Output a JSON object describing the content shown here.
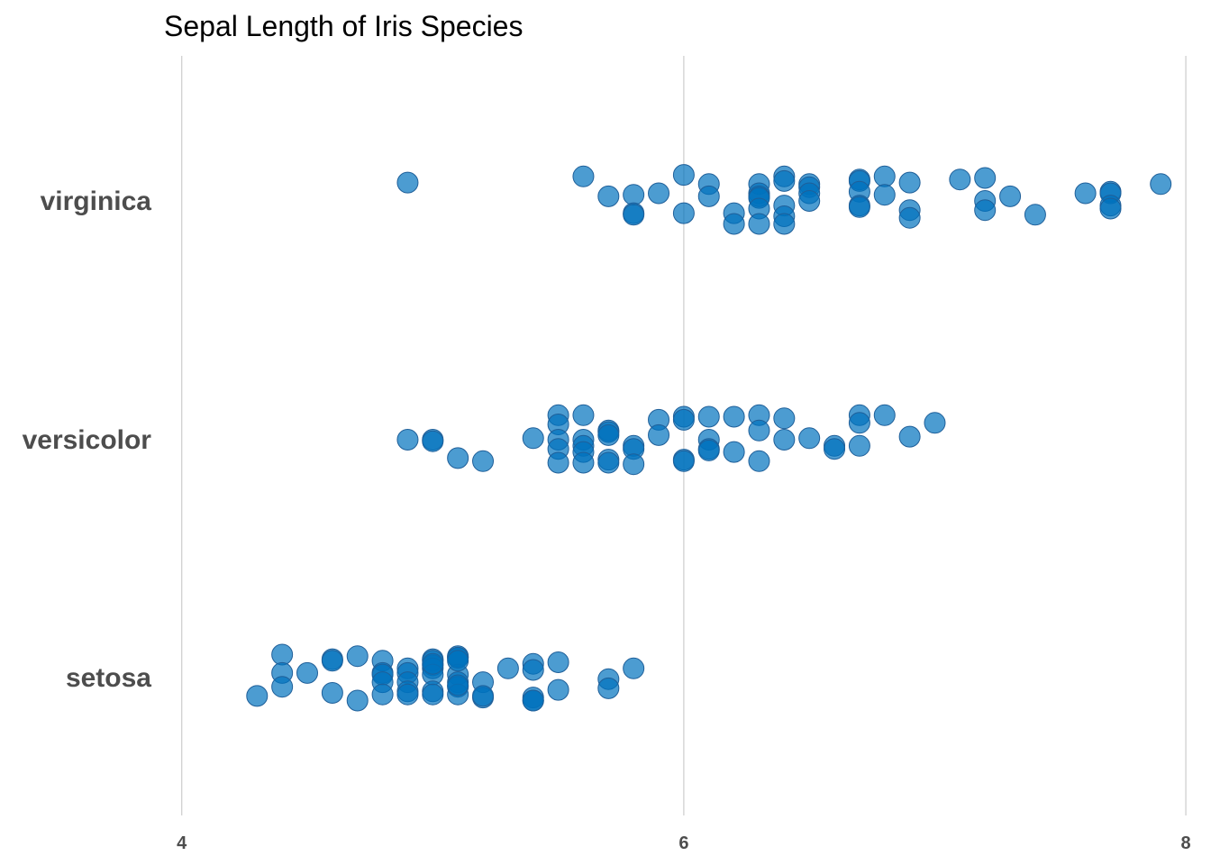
{
  "chart_data": {
    "type": "scatter",
    "title": "Sepal Length of Iris Species",
    "xlabel": "",
    "ylabel": "",
    "xlim": [
      3.94,
      8.05
    ],
    "x_ticks": [
      "4",
      "6",
      "8"
    ],
    "x_tick_values": [
      4,
      6,
      8
    ],
    "grid": "vertical major gridlines",
    "point_color": "#0072BD",
    "point_opacity": 0.7,
    "categories": [
      "setosa",
      "versicolor",
      "virginica"
    ],
    "series": [
      {
        "category": "setosa",
        "points": [
          {
            "x": 4.3,
            "y": -0.12
          },
          {
            "x": 4.4,
            "y": 0.15
          },
          {
            "x": 4.4,
            "y": 0.03
          },
          {
            "x": 4.4,
            "y": -0.06
          },
          {
            "x": 4.5,
            "y": 0.03
          },
          {
            "x": 4.6,
            "y": 0.12
          },
          {
            "x": 4.6,
            "y": 0.11
          },
          {
            "x": 4.6,
            "y": -0.1
          },
          {
            "x": 4.7,
            "y": 0.14
          },
          {
            "x": 4.7,
            "y": -0.15
          },
          {
            "x": 4.8,
            "y": 0.11
          },
          {
            "x": 4.8,
            "y": 0.03
          },
          {
            "x": 4.8,
            "y": 0.02
          },
          {
            "x": 4.8,
            "y": -0.03
          },
          {
            "x": 4.8,
            "y": -0.11
          },
          {
            "x": 4.9,
            "y": 0.06
          },
          {
            "x": 4.9,
            "y": 0.03
          },
          {
            "x": 4.9,
            "y": -0.03
          },
          {
            "x": 4.9,
            "y": -0.09
          },
          {
            "x": 4.9,
            "y": -0.11
          },
          {
            "x": 5.0,
            "y": 0.12
          },
          {
            "x": 5.0,
            "y": 0.11
          },
          {
            "x": 5.0,
            "y": 0.08
          },
          {
            "x": 5.0,
            "y": 0.06
          },
          {
            "x": 5.0,
            "y": 0.02
          },
          {
            "x": 5.0,
            "y": -0.09
          },
          {
            "x": 5.0,
            "y": -0.11
          },
          {
            "x": 5.0,
            "y": 0.09
          },
          {
            "x": 5.1,
            "y": 0.14
          },
          {
            "x": 5.1,
            "y": 0.13
          },
          {
            "x": 5.1,
            "y": 0.02
          },
          {
            "x": 5.1,
            "y": -0.03
          },
          {
            "x": 5.1,
            "y": -0.06
          },
          {
            "x": 5.1,
            "y": -0.11
          },
          {
            "x": 5.1,
            "y": -0.05
          },
          {
            "x": 5.1,
            "y": 0.13
          },
          {
            "x": 5.1,
            "y": 0.11
          },
          {
            "x": 5.2,
            "y": -0.03
          },
          {
            "x": 5.2,
            "y": -0.13
          },
          {
            "x": 5.2,
            "y": -0.12
          },
          {
            "x": 5.3,
            "y": 0.06
          },
          {
            "x": 5.4,
            "y": 0.09
          },
          {
            "x": 5.4,
            "y": 0.05
          },
          {
            "x": 5.4,
            "y": -0.13
          },
          {
            "x": 5.4,
            "y": -0.15
          },
          {
            "x": 5.4,
            "y": -0.15
          },
          {
            "x": 5.5,
            "y": 0.1
          },
          {
            "x": 5.5,
            "y": -0.08
          },
          {
            "x": 5.7,
            "y": -0.01
          },
          {
            "x": 5.7,
            "y": -0.07
          },
          {
            "x": 5.8,
            "y": 0.06
          }
        ]
      },
      {
        "category": "versicolor",
        "points": [
          {
            "x": 4.9,
            "y": 0.0
          },
          {
            "x": 5.0,
            "y": 0.0
          },
          {
            "x": 5.0,
            "y": -0.01
          },
          {
            "x": 5.1,
            "y": -0.12
          },
          {
            "x": 5.2,
            "y": -0.14
          },
          {
            "x": 5.4,
            "y": 0.01
          },
          {
            "x": 5.5,
            "y": 0.16
          },
          {
            "x": 5.5,
            "y": 0.1
          },
          {
            "x": 5.5,
            "y": 0.0
          },
          {
            "x": 5.5,
            "y": -0.06
          },
          {
            "x": 5.5,
            "y": -0.15
          },
          {
            "x": 5.6,
            "y": 0.16
          },
          {
            "x": 5.6,
            "y": 0.0
          },
          {
            "x": 5.6,
            "y": -0.04
          },
          {
            "x": 5.6,
            "y": -0.08
          },
          {
            "x": 5.6,
            "y": -0.15
          },
          {
            "x": 5.7,
            "y": 0.06
          },
          {
            "x": 5.7,
            "y": 0.05
          },
          {
            "x": 5.7,
            "y": 0.03
          },
          {
            "x": 5.7,
            "y": -0.13
          },
          {
            "x": 5.7,
            "y": -0.15
          },
          {
            "x": 5.8,
            "y": -0.04
          },
          {
            "x": 5.8,
            "y": -0.06
          },
          {
            "x": 5.8,
            "y": -0.16
          },
          {
            "x": 5.9,
            "y": 0.13
          },
          {
            "x": 5.9,
            "y": 0.03
          },
          {
            "x": 6.0,
            "y": 0.15
          },
          {
            "x": 6.0,
            "y": 0.13
          },
          {
            "x": 6.0,
            "y": -0.13
          },
          {
            "x": 6.0,
            "y": -0.14
          },
          {
            "x": 6.1,
            "y": 0.15
          },
          {
            "x": 6.1,
            "y": 0.0
          },
          {
            "x": 6.1,
            "y": -0.06
          },
          {
            "x": 6.1,
            "y": -0.07
          },
          {
            "x": 6.2,
            "y": 0.15
          },
          {
            "x": 6.2,
            "y": -0.08
          },
          {
            "x": 6.3,
            "y": 0.16
          },
          {
            "x": 6.3,
            "y": 0.06
          },
          {
            "x": 6.3,
            "y": -0.14
          },
          {
            "x": 6.4,
            "y": 0.14
          },
          {
            "x": 6.4,
            "y": 0.0
          },
          {
            "x": 6.5,
            "y": 0.01
          },
          {
            "x": 6.6,
            "y": -0.04
          },
          {
            "x": 6.6,
            "y": -0.06
          },
          {
            "x": 6.7,
            "y": 0.16
          },
          {
            "x": 6.7,
            "y": 0.11
          },
          {
            "x": 6.7,
            "y": -0.04
          },
          {
            "x": 6.8,
            "y": 0.16
          },
          {
            "x": 6.9,
            "y": 0.02
          },
          {
            "x": 7.0,
            "y": 0.11
          }
        ]
      },
      {
        "category": "virginica",
        "points": [
          {
            "x": 4.9,
            "y": 0.12
          },
          {
            "x": 5.6,
            "y": 0.16
          },
          {
            "x": 5.7,
            "y": 0.03
          },
          {
            "x": 5.8,
            "y": 0.04
          },
          {
            "x": 5.8,
            "y": -0.08
          },
          {
            "x": 5.8,
            "y": -0.09
          },
          {
            "x": 5.9,
            "y": 0.05
          },
          {
            "x": 6.0,
            "y": 0.17
          },
          {
            "x": 6.0,
            "y": -0.08
          },
          {
            "x": 6.1,
            "y": 0.11
          },
          {
            "x": 6.1,
            "y": 0.03
          },
          {
            "x": 6.2,
            "y": -0.08
          },
          {
            "x": 6.2,
            "y": -0.15
          },
          {
            "x": 6.3,
            "y": 0.11
          },
          {
            "x": 6.3,
            "y": 0.05
          },
          {
            "x": 6.3,
            "y": 0.03
          },
          {
            "x": 6.3,
            "y": 0.02
          },
          {
            "x": 6.3,
            "y": -0.05
          },
          {
            "x": 6.3,
            "y": -0.15
          },
          {
            "x": 6.4,
            "y": 0.16
          },
          {
            "x": 6.4,
            "y": 0.13
          },
          {
            "x": 6.4,
            "y": -0.03
          },
          {
            "x": 6.4,
            "y": -0.1
          },
          {
            "x": 6.4,
            "y": -0.15
          },
          {
            "x": 6.5,
            "y": 0.11
          },
          {
            "x": 6.5,
            "y": 0.09
          },
          {
            "x": 6.5,
            "y": 0.05
          },
          {
            "x": 6.5,
            "y": 0.0
          },
          {
            "x": 6.7,
            "y": 0.14
          },
          {
            "x": 6.7,
            "y": 0.13
          },
          {
            "x": 6.7,
            "y": 0.06
          },
          {
            "x": 6.7,
            "y": -0.03
          },
          {
            "x": 6.7,
            "y": -0.04
          },
          {
            "x": 6.8,
            "y": 0.16
          },
          {
            "x": 6.8,
            "y": 0.04
          },
          {
            "x": 6.9,
            "y": 0.12
          },
          {
            "x": 6.9,
            "y": -0.06
          },
          {
            "x": 6.9,
            "y": -0.11
          },
          {
            "x": 7.1,
            "y": 0.14
          },
          {
            "x": 7.2,
            "y": 0.15
          },
          {
            "x": 7.2,
            "y": 0.0
          },
          {
            "x": 7.2,
            "y": -0.06
          },
          {
            "x": 7.3,
            "y": 0.03
          },
          {
            "x": 7.4,
            "y": -0.09
          },
          {
            "x": 7.6,
            "y": 0.05
          },
          {
            "x": 7.7,
            "y": 0.06
          },
          {
            "x": 7.7,
            "y": 0.05
          },
          {
            "x": 7.7,
            "y": -0.03
          },
          {
            "x": 7.7,
            "y": -0.05
          },
          {
            "x": 7.9,
            "y": 0.11
          }
        ]
      }
    ]
  }
}
